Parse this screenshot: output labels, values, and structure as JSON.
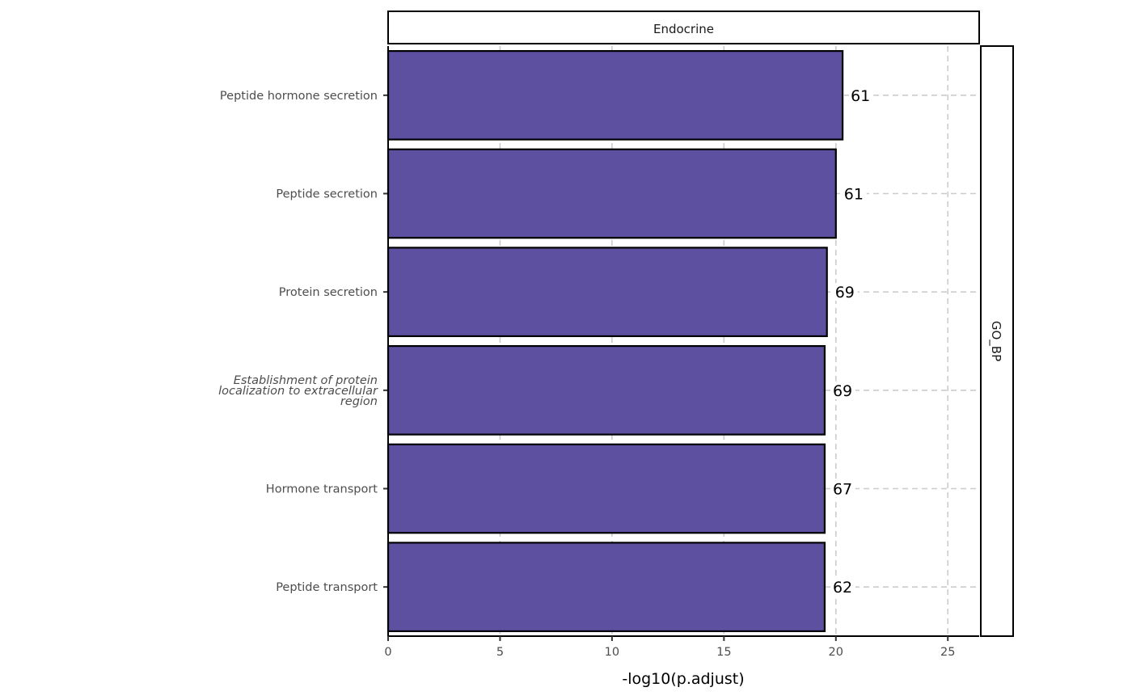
{
  "chart_data": {
    "type": "bar",
    "orientation": "horizontal",
    "facet_top": "Endocrine",
    "facet_right": "GO_BP",
    "categories": [
      "Peptide hormone secretion",
      "Peptide secretion",
      "Protein secretion",
      "Establishment of protein localization to extracellular region",
      "Hormone transport",
      "Peptide transport"
    ],
    "category_label_lines": [
      [
        "Peptide hormone secretion"
      ],
      [
        "Peptide secretion"
      ],
      [
        "Protein secretion"
      ],
      [
        "Establishment of protein",
        "localization to extracellular",
        "region"
      ],
      [
        "Hormone transport"
      ],
      [
        "Peptide transport"
      ]
    ],
    "italic_categories": [
      3
    ],
    "values": [
      20.3,
      20.0,
      19.6,
      19.5,
      19.5,
      19.5
    ],
    "counts": [
      61,
      61,
      69,
      69,
      67,
      62
    ],
    "xlabel": "-log10(p.adjust)",
    "ylabel": "",
    "xlim": [
      0,
      26.4
    ],
    "xticks": [
      0,
      5,
      10,
      15,
      20,
      25
    ],
    "grid": "vertical and horizontal dashed",
    "legend": "none",
    "colors": {
      "bar_fill": "#5e50a1",
      "bar_stroke": "#000000",
      "grid": "#cccccc"
    }
  }
}
